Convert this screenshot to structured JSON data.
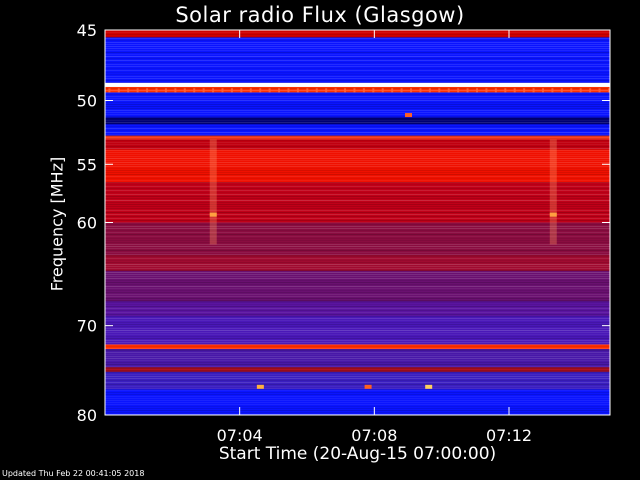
{
  "chart_data": {
    "type": "heatmap",
    "title": "Solar radio Flux (Glasgow)",
    "xlabel": "Start Time (20-Aug-15 07:00:00)",
    "ylabel": "Frequency [MHz]",
    "x_range_minutes": [
      0,
      15
    ],
    "y_range_mhz": [
      45,
      80
    ],
    "y_scale": "log",
    "x_ticks": [
      {
        "minute": 4,
        "label": "07:04"
      },
      {
        "minute": 8,
        "label": "07:08"
      },
      {
        "minute": 12,
        "label": "07:12"
      }
    ],
    "y_ticks": [
      {
        "mhz": 45,
        "label": "45"
      },
      {
        "mhz": 50,
        "label": "50"
      },
      {
        "mhz": 55,
        "label": "55"
      },
      {
        "mhz": 60,
        "label": "60"
      },
      {
        "mhz": 70,
        "label": "70"
      },
      {
        "mhz": 80,
        "label": "80"
      }
    ],
    "colormap": [
      "#0000ff",
      "#3a1fb0",
      "#8a1060",
      "#d00010",
      "#ff2000",
      "#ff8040",
      "#ffffff"
    ],
    "bands": [
      {
        "from_mhz": 45.0,
        "to_mhz": 45.5,
        "color": "#d00000"
      },
      {
        "from_mhz": 45.5,
        "to_mhz": 48.7,
        "color": "#0a14ff"
      },
      {
        "from_mhz": 48.7,
        "to_mhz": 49.0,
        "color": "#ffffff"
      },
      {
        "from_mhz": 49.0,
        "to_mhz": 49.4,
        "color": "#ff3000"
      },
      {
        "from_mhz": 49.4,
        "to_mhz": 51.3,
        "color": "#0a14ff"
      },
      {
        "from_mhz": 51.3,
        "to_mhz": 51.8,
        "color": "#000070"
      },
      {
        "from_mhz": 51.8,
        "to_mhz": 52.7,
        "color": "#0a14ff"
      },
      {
        "from_mhz": 52.7,
        "to_mhz": 53.0,
        "color": "#ff4020"
      },
      {
        "from_mhz": 53.0,
        "to_mhz": 53.8,
        "color": "#c00010"
      },
      {
        "from_mhz": 53.8,
        "to_mhz": 56.5,
        "color": "#f01000"
      },
      {
        "from_mhz": 56.5,
        "to_mhz": 60.0,
        "color": "#c00018"
      },
      {
        "from_mhz": 60.0,
        "to_mhz": 63.0,
        "color": "#8a0c40"
      },
      {
        "from_mhz": 63.0,
        "to_mhz": 64.5,
        "color": "#a00a30"
      },
      {
        "from_mhz": 64.5,
        "to_mhz": 67.5,
        "color": "#6a1070"
      },
      {
        "from_mhz": 67.5,
        "to_mhz": 69.0,
        "color": "#5a14a0"
      },
      {
        "from_mhz": 69.0,
        "to_mhz": 72.0,
        "color": "#4a18b8"
      },
      {
        "from_mhz": 72.0,
        "to_mhz": 72.5,
        "color": "#ff3000"
      },
      {
        "from_mhz": 72.5,
        "to_mhz": 74.5,
        "color": "#4818a8"
      },
      {
        "from_mhz": 74.5,
        "to_mhz": 75.0,
        "color": "#b01020"
      },
      {
        "from_mhz": 75.0,
        "to_mhz": 77.0,
        "color": "#3a1ec0"
      },
      {
        "from_mhz": 77.0,
        "to_mhz": 80.0,
        "color": "#0a14ff"
      }
    ],
    "highlights": [
      {
        "minute": 3.2,
        "mhz": 59.3,
        "color": "#ffa040"
      },
      {
        "minute": 13.3,
        "mhz": 59.3,
        "color": "#ffa040"
      },
      {
        "minute": 9.0,
        "mhz": 51.1,
        "color": "#ff6020"
      },
      {
        "minute": 4.6,
        "mhz": 76.7,
        "color": "#ffb040"
      },
      {
        "minute": 7.8,
        "mhz": 76.7,
        "color": "#ff6020"
      },
      {
        "minute": 9.6,
        "mhz": 76.7,
        "color": "#ffd060"
      }
    ]
  },
  "footer_text": "Updated Thu Feb 22 00:41:05 2018"
}
